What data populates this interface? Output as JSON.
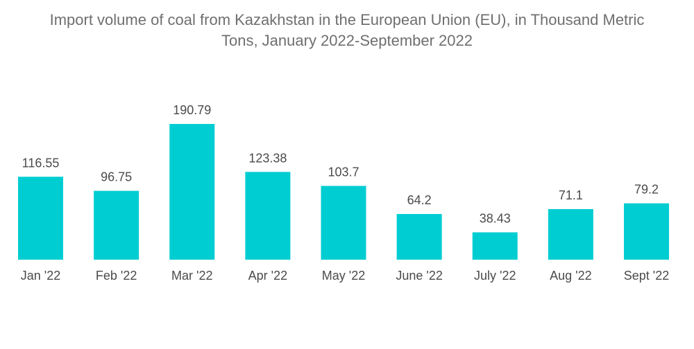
{
  "chart_data": {
    "type": "bar",
    "title_line1": "Import volume of coal from Kazakhstan in the European Union (EU), in Thousand Metric",
    "title_line2": "Tons, January 2022-September 2022",
    "xlabel": "",
    "ylabel": "",
    "ylim": [
      0,
      190.79
    ],
    "grid": false,
    "legend": "none",
    "bar_color": "#00cdd2",
    "categories": [
      "Jan '22",
      "Feb '22",
      "Mar '22",
      "Apr '22",
      "May '22",
      "June '22",
      "July '22",
      "Aug '22",
      "Sept '22"
    ],
    "values": [
      116.55,
      96.75,
      190.79,
      123.38,
      103.7,
      64.2,
      38.43,
      71.1,
      79.2
    ],
    "value_labels": [
      "116.55",
      "96.75",
      "190.79",
      "123.38",
      "103.7",
      "64.2",
      "38.43",
      "71.1",
      "79.2"
    ]
  }
}
